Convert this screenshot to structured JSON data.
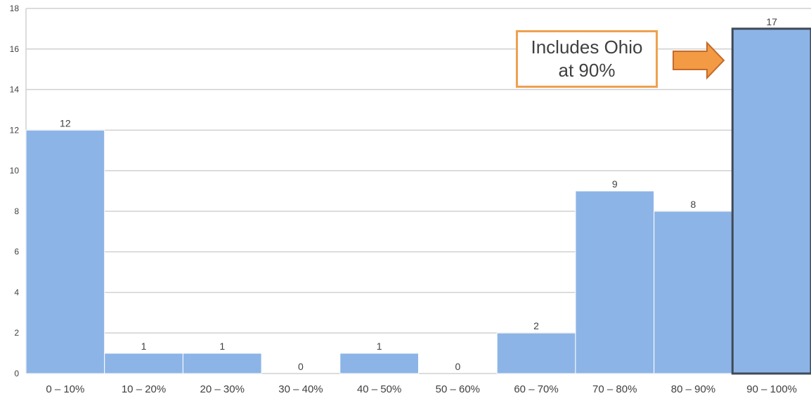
{
  "chart_data": {
    "type": "bar",
    "categories": [
      "0 – 10%",
      "10 – 20%",
      "20 – 30%",
      "30 – 40%",
      "40 – 50%",
      "50 – 60%",
      "60 – 70%",
      "70 – 80%",
      "80 – 90%",
      "90 – 100%"
    ],
    "values": [
      12,
      1,
      1,
      0,
      1,
      0,
      2,
      9,
      8,
      17
    ],
    "yticks": [
      0,
      2,
      4,
      6,
      8,
      10,
      12,
      14,
      16,
      18
    ],
    "ylim": [
      0,
      18
    ],
    "grid": true,
    "highlighted_category": "90 – 100%",
    "annotation": {
      "line1": "Includes Ohio",
      "line2": "at 90%",
      "points_to": "90 – 100%"
    },
    "colors": {
      "bar": "#8db4e6",
      "highlight_border": "#404a58",
      "grid": "#d0d0d0",
      "callout_border": "#f0a050",
      "arrow_fill": "#f39a45",
      "arrow_stroke": "#c46b2a",
      "text": "#404040"
    }
  }
}
